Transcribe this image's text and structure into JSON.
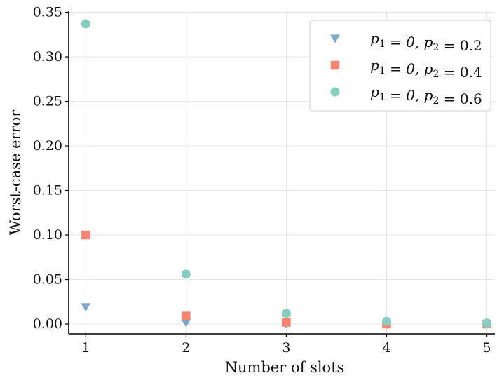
{
  "chart_data": {
    "type": "scatter",
    "title": "",
    "xlabel": "Number of slots",
    "ylabel": "Worst-case error",
    "x": [
      1,
      2,
      3,
      4,
      5
    ],
    "xlim": [
      0.83,
      5.08
    ],
    "ylim": [
      -0.011,
      0.352
    ],
    "xticks": [
      1,
      2,
      3,
      4,
      5
    ],
    "xtick_labels": [
      "1",
      "2",
      "3",
      "4",
      "5"
    ],
    "yticks": [
      0.0,
      0.05,
      0.1,
      0.15,
      0.2,
      0.25,
      0.3,
      0.35
    ],
    "ytick_labels": [
      "0.00",
      "0.05",
      "0.10",
      "0.15",
      "0.20",
      "0.25",
      "0.30",
      "0.35"
    ],
    "grid": true,
    "legend_position": "top-right",
    "series": [
      {
        "name": "p1 = 0, p2 = 0.2",
        "marker": "triangle-down-icon",
        "color": "#7ba9cf",
        "values": [
          0.019,
          0.001,
          0.0,
          0.0,
          0.0
        ]
      },
      {
        "name": "p1 = 0, p2 = 0.4",
        "marker": "square-icon",
        "color": "#f98271",
        "values": [
          0.1,
          0.009,
          0.002,
          0.0,
          0.0
        ]
      },
      {
        "name": "p1 = 0, p2 = 0.6",
        "marker": "circle-icon",
        "color": "#86cfc0",
        "values": [
          0.337,
          0.056,
          0.012,
          0.003,
          0.001
        ]
      }
    ]
  }
}
